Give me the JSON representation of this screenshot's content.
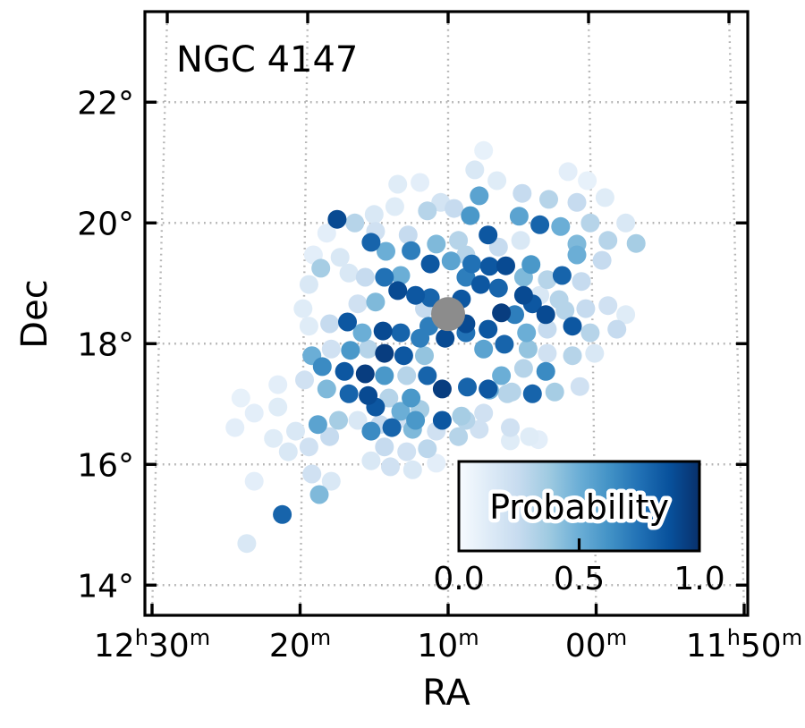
{
  "chart_data": {
    "type": "scatter",
    "title": "NGC 4147",
    "xlabel": "RA",
    "ylabel": "Dec",
    "grid": true,
    "x_axis": {
      "unit": "hourangle",
      "offset_reference": "12h10m",
      "ticks": [
        {
          "parts": [
            "12",
            "h",
            "30",
            "m"
          ],
          "offset_min": 20
        },
        {
          "parts": [
            "20",
            "m"
          ],
          "offset_min": 10
        },
        {
          "parts": [
            "10",
            "m"
          ],
          "offset_min": 0
        },
        {
          "parts": [
            "00",
            "m"
          ],
          "offset_min": -10
        },
        {
          "parts": [
            "11",
            "h",
            "50",
            "m"
          ],
          "offset_min": -20
        }
      ]
    },
    "y_axis": {
      "ticks": [
        {
          "label": "22°",
          "deg": 22
        },
        {
          "label": "20°",
          "deg": 20
        },
        {
          "label": "18°",
          "deg": 18
        },
        {
          "label": "16°",
          "deg": 16
        },
        {
          "label": "14°",
          "deg": 14
        }
      ]
    },
    "colorbar": {
      "label": "Probability",
      "tick_labels": [
        "0.0",
        "0.5",
        "1.0"
      ],
      "tick_values": [
        0.0,
        0.5,
        1.0
      ],
      "colormap": "Blues",
      "colormap_stops": [
        "#f7fbff",
        "#deebf7",
        "#c6dbef",
        "#9ecae1",
        "#6baed6",
        "#4292c6",
        "#2171b5",
        "#08519c",
        "#08306b"
      ]
    },
    "center_marker": {
      "ra_offset_min": 0.0,
      "dec_deg": 18.49,
      "color": "#8c8c8c"
    },
    "points": [
      [
        -1.8,
        20.88,
        0.15
      ],
      [
        -3.3,
        20.7,
        0.12
      ],
      [
        1.9,
        20.67,
        0.1
      ],
      [
        3.4,
        20.64,
        0.12
      ],
      [
        -2.4,
        21.2,
        0.08
      ],
      [
        -8.1,
        20.85,
        0.1
      ],
      [
        -9.4,
        20.7,
        0.08
      ],
      [
        -5.0,
        20.49,
        0.25
      ],
      [
        -2.1,
        20.45,
        0.55
      ],
      [
        0.5,
        20.34,
        0.18
      ],
      [
        1.4,
        20.2,
        0.3
      ],
      [
        -0.4,
        20.24,
        0.25
      ],
      [
        3.6,
        20.27,
        0.12
      ],
      [
        -1.5,
        20.12,
        0.6
      ],
      [
        -6.8,
        20.39,
        0.3
      ],
      [
        -8.7,
        20.34,
        0.25
      ],
      [
        -10.6,
        20.42,
        0.12
      ],
      [
        7.5,
        20.06,
        0.9
      ],
      [
        6.3,
        20.0,
        0.3
      ],
      [
        5.0,
        20.14,
        0.15
      ],
      [
        -2.7,
        19.8,
        0.85
      ],
      [
        2.7,
        19.8,
        0.25
      ],
      [
        4.9,
        19.86,
        0.2
      ],
      [
        8.2,
        19.83,
        0.1
      ],
      [
        5.2,
        19.68,
        0.8
      ],
      [
        4.2,
        19.53,
        0.5
      ],
      [
        0.8,
        19.65,
        0.45
      ],
      [
        -0.7,
        19.71,
        0.3
      ],
      [
        -3.4,
        19.6,
        0.25
      ],
      [
        -4.9,
        19.71,
        0.15
      ],
      [
        -6.2,
        19.97,
        0.8
      ],
      [
        -7.6,
        19.94,
        0.5
      ],
      [
        -9.6,
        20.0,
        0.3
      ],
      [
        -12.0,
        20.0,
        0.15
      ],
      [
        -4.8,
        20.11,
        0.55
      ],
      [
        -8.7,
        19.65,
        0.45
      ],
      [
        -10.8,
        19.71,
        0.3
      ],
      [
        -12.7,
        19.66,
        0.35
      ],
      [
        -8.7,
        19.47,
        0.5
      ],
      [
        -10.4,
        19.38,
        0.25
      ],
      [
        9.1,
        19.47,
        0.1
      ],
      [
        7.3,
        19.43,
        0.15
      ],
      [
        2.5,
        19.54,
        0.7
      ],
      [
        1.2,
        19.32,
        0.85
      ],
      [
        -0.2,
        19.37,
        0.55
      ],
      [
        -1.2,
        19.47,
        0.3
      ],
      [
        -1.6,
        19.32,
        0.75
      ],
      [
        -2.8,
        19.28,
        0.85
      ],
      [
        -3.9,
        19.29,
        0.9
      ],
      [
        -5.6,
        19.31,
        0.6
      ],
      [
        -5.1,
        19.1,
        0.45
      ],
      [
        -6.7,
        19.06,
        0.3
      ],
      [
        -7.7,
        19.13,
        0.8
      ],
      [
        -9.0,
        19.03,
        0.25
      ],
      [
        -6.2,
        18.8,
        0.15
      ],
      [
        -7.5,
        18.73,
        0.3
      ],
      [
        -5.1,
        18.8,
        0.9
      ],
      [
        -3.4,
        18.92,
        0.8
      ],
      [
        -2.2,
        18.98,
        0.85
      ],
      [
        -1.2,
        19.1,
        0.7
      ],
      [
        8.6,
        19.25,
        0.35
      ],
      [
        9.4,
        18.98,
        0.15
      ],
      [
        9.8,
        18.58,
        0.12
      ],
      [
        6.7,
        19.17,
        0.15
      ],
      [
        5.6,
        19.1,
        0.25
      ],
      [
        4.3,
        19.1,
        0.75
      ],
      [
        3.2,
        19.13,
        0.5
      ],
      [
        3.4,
        18.88,
        0.9
      ],
      [
        2.2,
        18.8,
        0.85
      ],
      [
        4.9,
        18.69,
        0.45
      ],
      [
        6.1,
        18.66,
        0.2
      ],
      [
        1.6,
        18.58,
        0.25
      ],
      [
        1.2,
        18.76,
        0.8
      ],
      [
        -0.9,
        18.74,
        0.85
      ],
      [
        -6.6,
        18.48,
        0.9
      ],
      [
        -7.9,
        18.55,
        0.3
      ],
      [
        -9.3,
        18.58,
        0.25
      ],
      [
        -10.8,
        18.63,
        0.2
      ],
      [
        -12.0,
        18.48,
        0.12
      ],
      [
        -3.6,
        18.51,
        0.95
      ],
      [
        -4.5,
        18.48,
        0.7
      ],
      [
        -5.7,
        18.66,
        0.85
      ],
      [
        -2.7,
        18.24,
        0.85
      ],
      [
        -1.2,
        18.18,
        0.75
      ],
      [
        0.2,
        18.09,
        0.9
      ],
      [
        -3.8,
        17.99,
        0.8
      ],
      [
        -5.4,
        17.91,
        0.4
      ],
      [
        -2.4,
        17.91,
        0.55
      ],
      [
        -6.7,
        17.84,
        0.2
      ],
      [
        -8.4,
        17.8,
        0.3
      ],
      [
        -9.9,
        17.84,
        0.15
      ],
      [
        -5.3,
        18.18,
        0.5
      ],
      [
        -6.7,
        18.24,
        0.25
      ],
      [
        -8.4,
        18.29,
        0.85
      ],
      [
        -9.6,
        18.18,
        0.3
      ],
      [
        -11.4,
        18.24,
        0.25
      ],
      [
        -1.2,
        18.33,
        0.9
      ],
      [
        1.3,
        18.29,
        0.7
      ],
      [
        6.8,
        18.36,
        0.85
      ],
      [
        8.0,
        18.33,
        0.25
      ],
      [
        9.4,
        18.29,
        0.12
      ],
      [
        5.8,
        18.18,
        0.5
      ],
      [
        4.4,
        18.21,
        0.9
      ],
      [
        3.2,
        18.18,
        0.8
      ],
      [
        1.9,
        18.09,
        0.7
      ],
      [
        5.4,
        17.91,
        0.3
      ],
      [
        6.6,
        17.89,
        0.6
      ],
      [
        7.9,
        17.91,
        0.2
      ],
      [
        4.3,
        17.84,
        0.95
      ],
      [
        3.0,
        17.8,
        0.85
      ],
      [
        1.6,
        17.8,
        0.4
      ],
      [
        9.2,
        17.8,
        0.5
      ],
      [
        8.5,
        17.62,
        0.65
      ],
      [
        7.0,
        17.54,
        0.85
      ],
      [
        5.6,
        17.5,
        0.95
      ],
      [
        4.3,
        17.47,
        0.6
      ],
      [
        2.8,
        17.47,
        0.3
      ],
      [
        1.4,
        17.47,
        0.8
      ],
      [
        9.7,
        17.4,
        0.2
      ],
      [
        8.2,
        17.25,
        0.45
      ],
      [
        6.7,
        17.17,
        0.8
      ],
      [
        5.4,
        17.14,
        0.9
      ],
      [
        4.0,
        17.1,
        0.3
      ],
      [
        2.5,
        17.1,
        0.6
      ],
      [
        -6.6,
        17.54,
        0.65
      ],
      [
        -5.1,
        17.59,
        0.3
      ],
      [
        -3.6,
        17.47,
        0.5
      ],
      [
        -2.7,
        17.25,
        0.85
      ],
      [
        -4.0,
        17.17,
        0.3
      ],
      [
        -5.7,
        17.17,
        0.8
      ],
      [
        -7.2,
        17.2,
        0.35
      ],
      [
        -8.9,
        17.29,
        0.2
      ],
      [
        0.4,
        17.25,
        0.95
      ],
      [
        -1.3,
        17.28,
        0.8
      ],
      [
        -2.8,
        17.23,
        0.5
      ],
      [
        -4.3,
        17.2,
        0.3
      ],
      [
        4.9,
        16.95,
        0.85
      ],
      [
        3.2,
        16.88,
        0.5
      ],
      [
        1.9,
        16.91,
        0.35
      ],
      [
        -0.9,
        16.8,
        0.35
      ],
      [
        3.8,
        16.61,
        0.8
      ],
      [
        5.2,
        16.55,
        0.65
      ],
      [
        2.4,
        16.58,
        0.45
      ],
      [
        0.8,
        16.55,
        0.2
      ],
      [
        -0.7,
        16.46,
        0.3
      ],
      [
        -2.1,
        16.58,
        0.2
      ],
      [
        -4.2,
        16.61,
        0.2
      ],
      [
        -5.5,
        16.46,
        0.12
      ],
      [
        11.5,
        16.95,
        0.12
      ],
      [
        13.1,
        16.85,
        0.1
      ],
      [
        14.4,
        16.61,
        0.1
      ],
      [
        11.8,
        16.43,
        0.12
      ],
      [
        10.3,
        16.55,
        0.15
      ],
      [
        8.8,
        16.66,
        0.55
      ],
      [
        7.4,
        16.73,
        0.35
      ],
      [
        6.1,
        16.73,
        0.15
      ],
      [
        4.6,
        16.66,
        0.25
      ],
      [
        3.2,
        16.76,
        0.2
      ],
      [
        2.2,
        16.73,
        0.6
      ],
      [
        0.4,
        16.73,
        0.85
      ],
      [
        -1.2,
        16.73,
        0.3
      ],
      [
        -2.4,
        16.85,
        0.2
      ],
      [
        8.0,
        16.46,
        0.25
      ],
      [
        9.4,
        16.29,
        0.2
      ],
      [
        10.8,
        16.21,
        0.15
      ],
      [
        9.2,
        15.84,
        0.2
      ],
      [
        7.9,
        15.72,
        0.15
      ],
      [
        8.7,
        15.5,
        0.45
      ],
      [
        11.2,
        15.17,
        0.8
      ],
      [
        13.6,
        14.69,
        0.15
      ],
      [
        13.1,
        15.72,
        0.1
      ],
      [
        11.5,
        17.32,
        0.1
      ],
      [
        14.0,
        17.1,
        0.08
      ],
      [
        4.3,
        16.29,
        0.25
      ],
      [
        2.8,
        16.21,
        0.2
      ],
      [
        1.4,
        16.26,
        0.28
      ],
      [
        5.2,
        16.06,
        0.15
      ],
      [
        3.9,
        15.96,
        0.2
      ],
      [
        2.4,
        15.91,
        0.15
      ],
      [
        0.8,
        16.02,
        0.1
      ],
      [
        -4.2,
        16.39,
        0.12
      ],
      [
        -6.1,
        16.41,
        0.1
      ]
    ]
  },
  "colors": {
    "frame": "#000000",
    "grid": "#b5b5b5",
    "background": "#ffffff",
    "marker_gray": "#8c8c8c",
    "accent_dark": "#08306b",
    "accent_light": "#f7fbff"
  }
}
